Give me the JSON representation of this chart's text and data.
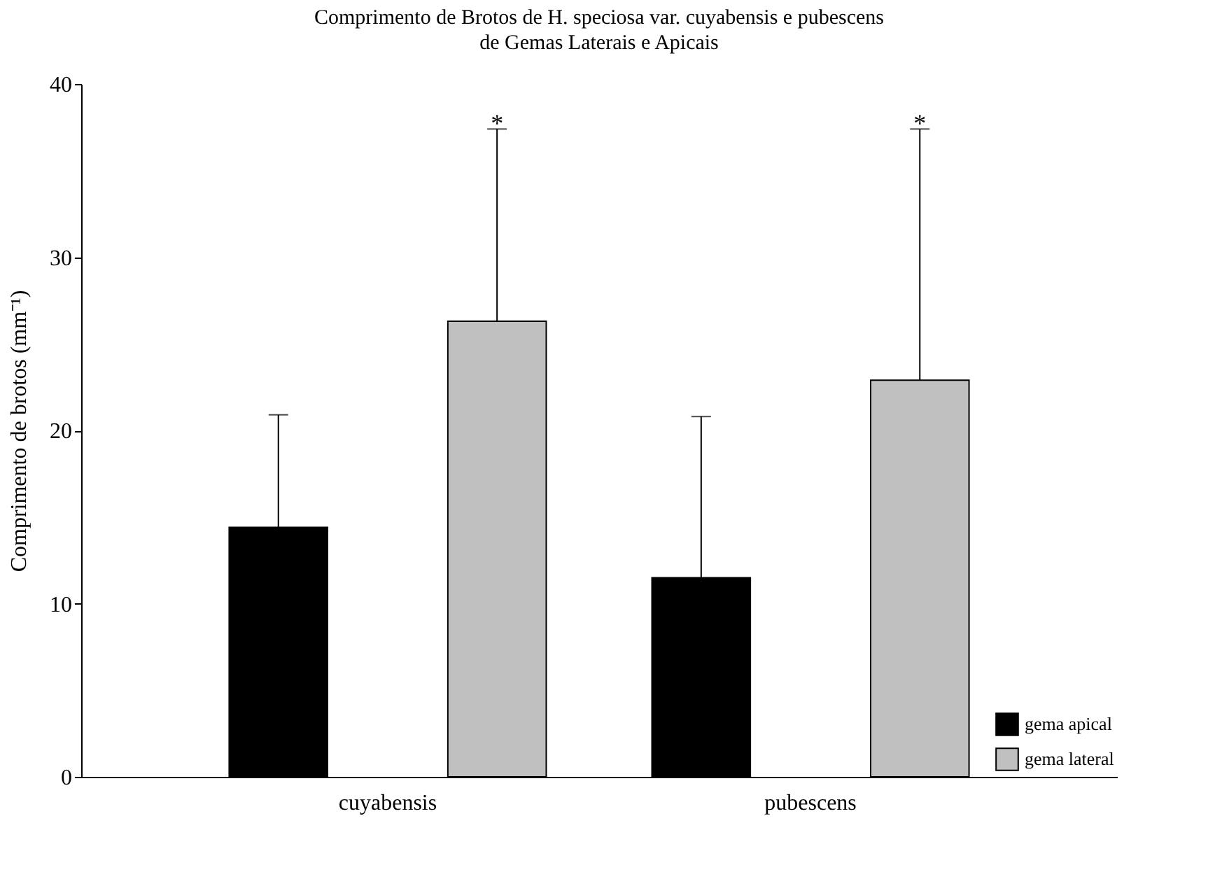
{
  "chart_data": {
    "type": "bar",
    "title": "Comprimento de Brotos de H. speciosa var. cuyabensis e pubescens",
    "subtitle": "de Gemas Laterais e Apicais",
    "ylabel": "Comprimento de brotos (mm⁻¹)",
    "categories": [
      "cuyabensis",
      "pubescens"
    ],
    "series": [
      {
        "name": "gema apical",
        "color": "#000000",
        "values": [
          14.4,
          11.5
        ],
        "errors": [
          [
            14.4,
            20.9
          ],
          [
            11.5,
            20.8
          ]
        ]
      },
      {
        "name": "gema lateral",
        "color": "#c0c0c0",
        "values": [
          26.3,
          22.9
        ],
        "errors": [
          [
            26.3,
            37.4
          ],
          [
            22.9,
            37.4
          ]
        ]
      }
    ],
    "annotations": [
      "*",
      "*"
    ],
    "ylim": [
      0,
      40
    ],
    "yticks": [
      0,
      10,
      20,
      30,
      40
    ],
    "grid": false,
    "legend": "bottom right"
  }
}
